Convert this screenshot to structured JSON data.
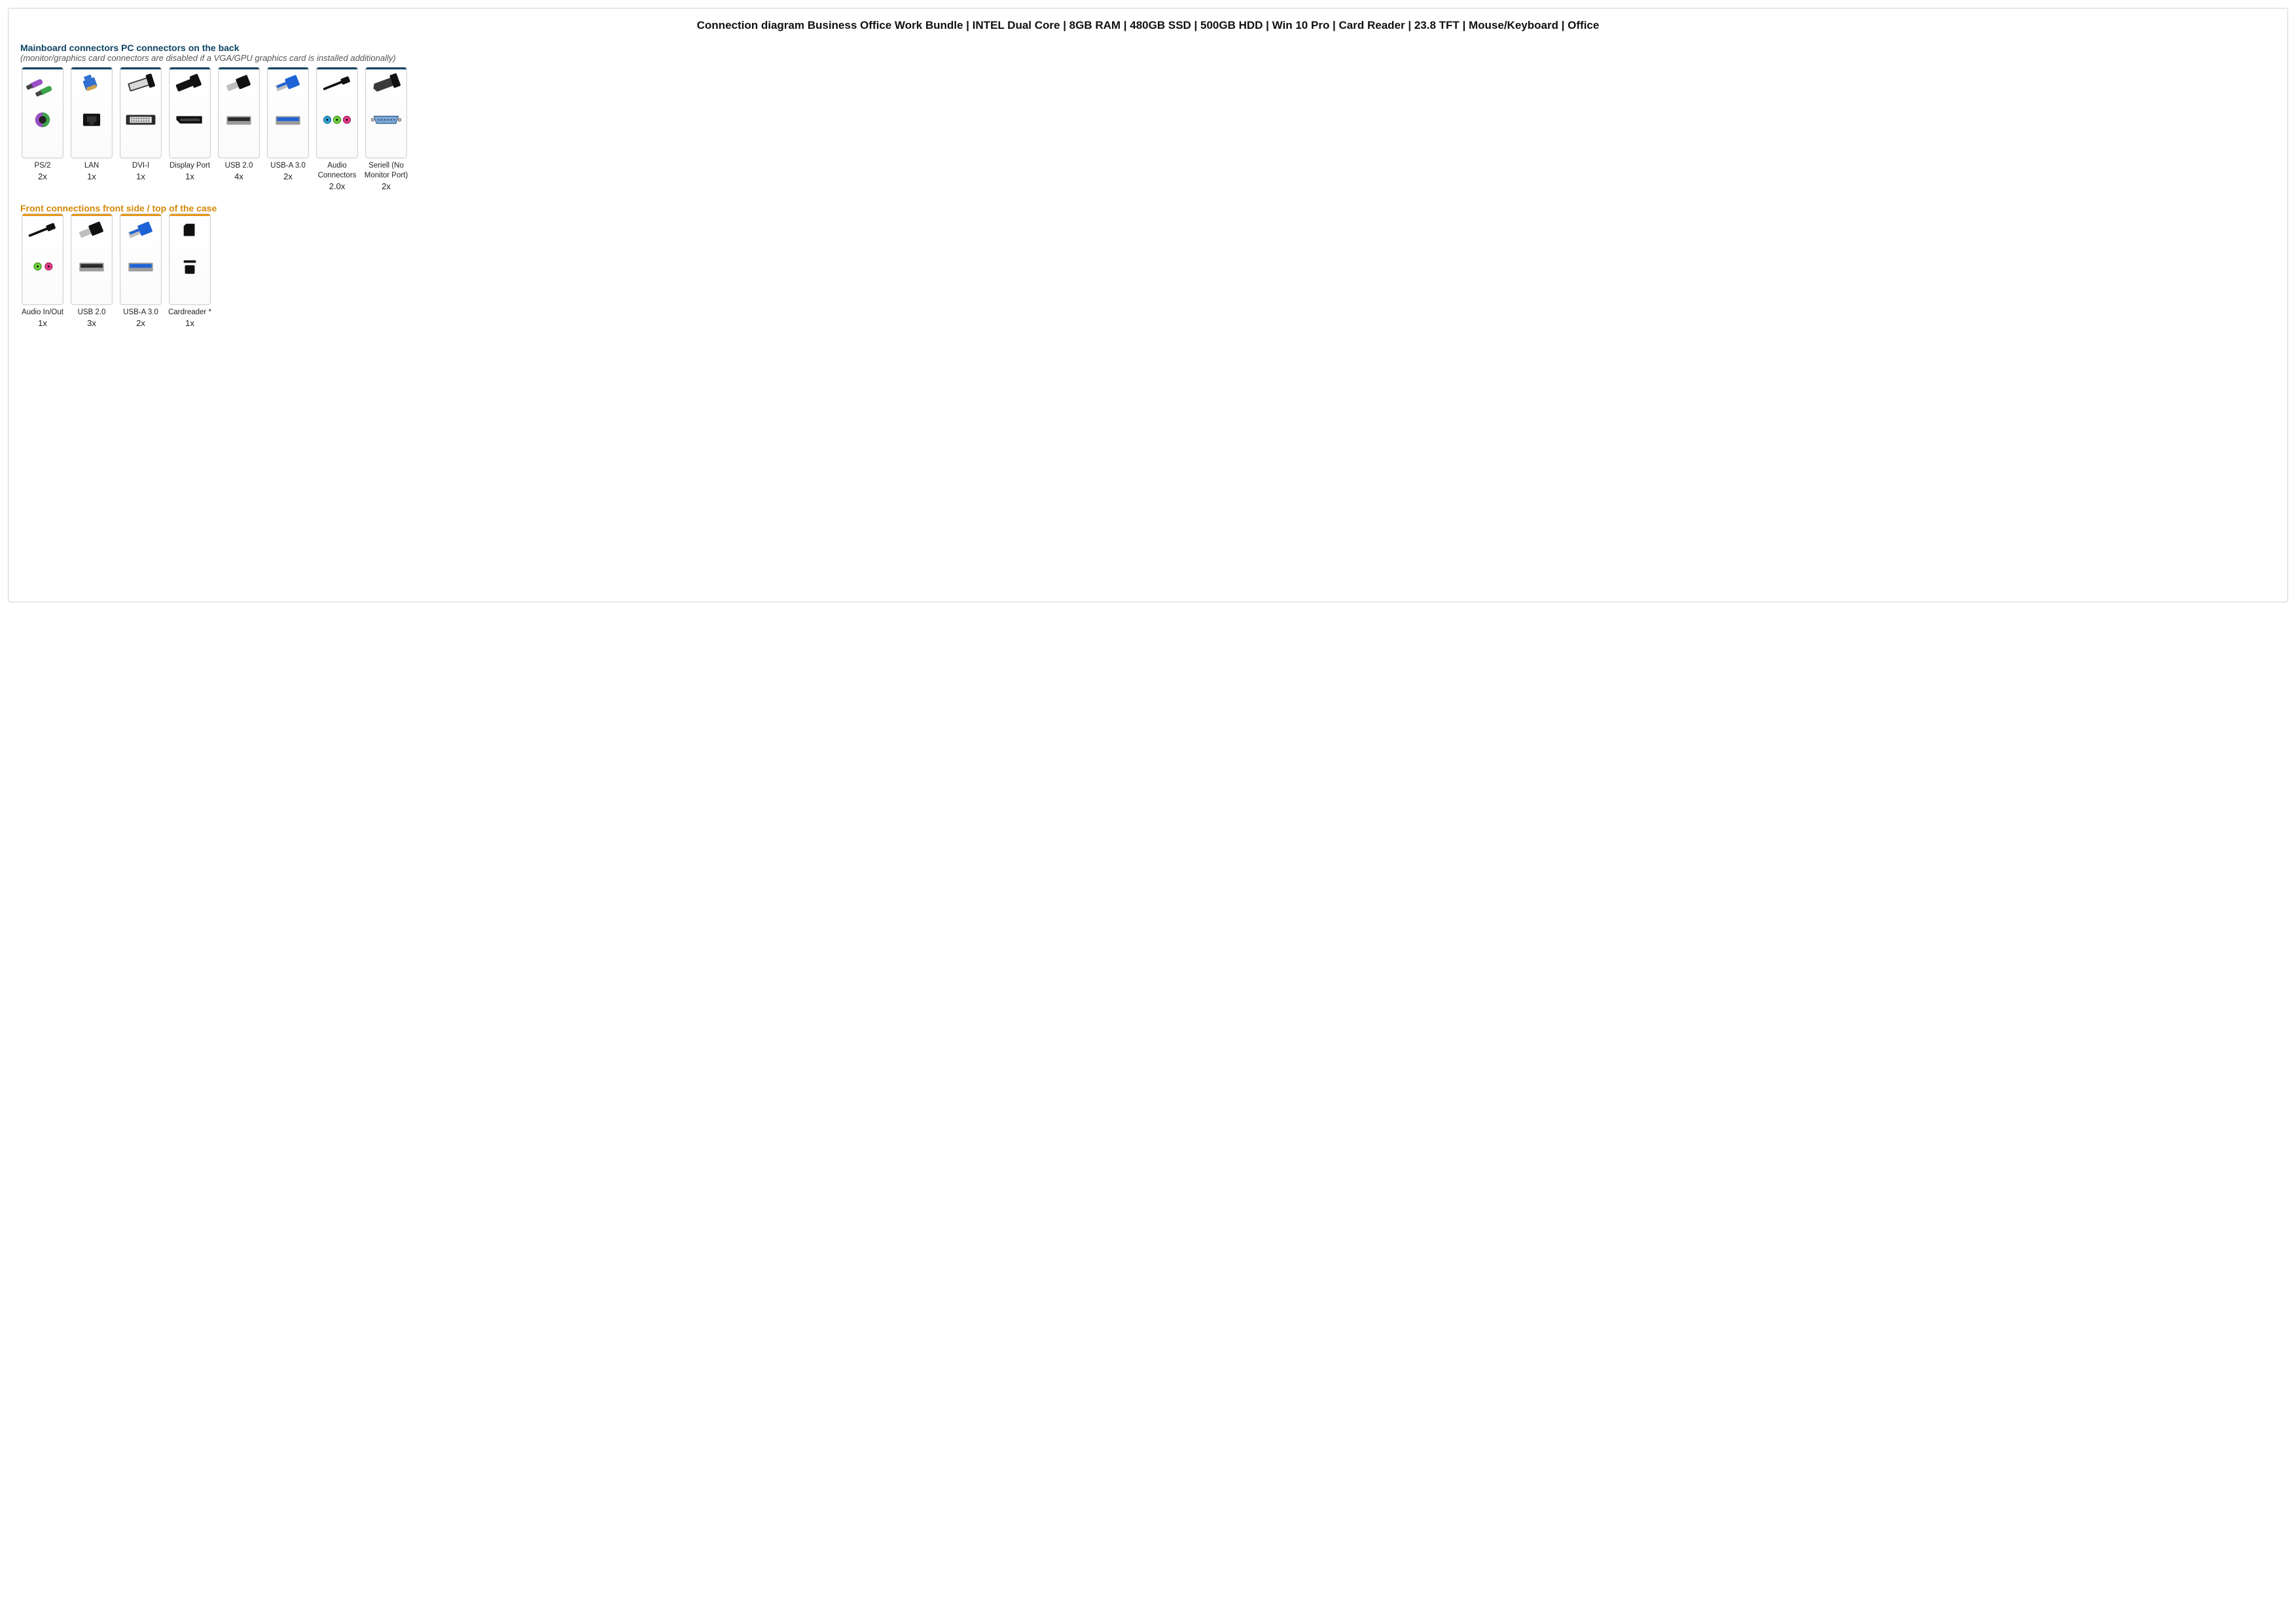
{
  "title": "Connection diagram Business Office Work Bundle | INTEL Dual Core | 8GB RAM | 480GB SSD | 500GB HDD | Win 10 Pro | Card Reader | 23.8 TFT | Mouse/Keyboard | Office",
  "colors": {
    "mainboard_header": "#0d4464",
    "mainboard_bar": "#0d4464",
    "front_header": "#d48806",
    "front_bar": "#e69516",
    "card_border": "#d0d0d0",
    "page_border": "#d4d4d4",
    "text": "#222222",
    "subtext": "#555555"
  },
  "sections": [
    {
      "id": "mainboard",
      "heading": "Mainboard connectors PC connectors on the back",
      "heading_color": "#0d4464",
      "subheading": "(monitor/graphics card connectors are disabled if a VGA/GPU graphics card is installed additionally)",
      "bar_color": "#0d4464",
      "items": [
        {
          "icon": "ps2",
          "label": "PS/2",
          "qty": "2x"
        },
        {
          "icon": "lan",
          "label": "LAN",
          "qty": "1x"
        },
        {
          "icon": "dvi",
          "label": "DVI-I",
          "qty": "1x"
        },
        {
          "icon": "dp",
          "label": "Display Port",
          "qty": "1x"
        },
        {
          "icon": "usb2",
          "label": "USB 2.0",
          "qty": "4x"
        },
        {
          "icon": "usb3",
          "label": "USB-A 3.0",
          "qty": "2x"
        },
        {
          "icon": "audio3",
          "label": "Audio Connectors",
          "qty": "2.0x"
        },
        {
          "icon": "serial",
          "label": "Seriell (No Monitor Port)",
          "qty": "2x"
        }
      ]
    },
    {
      "id": "front",
      "heading": "Front connections front side / top of the case",
      "heading_color": "#d48806",
      "subheading": "",
      "bar_color": "#e69516",
      "items": [
        {
          "icon": "audio2",
          "label": "Audio In/Out",
          "qty": "1x"
        },
        {
          "icon": "usb2",
          "label": "USB 2.0",
          "qty": "3x"
        },
        {
          "icon": "usb3",
          "label": "USB-A 3.0",
          "qty": "2x"
        },
        {
          "icon": "card",
          "label": "Cardreader *",
          "qty": "1x"
        }
      ]
    }
  ]
}
